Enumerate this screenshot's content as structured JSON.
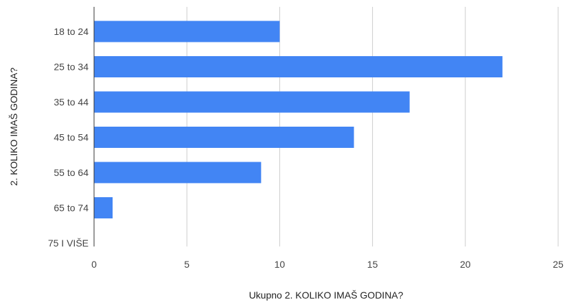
{
  "chart_data": {
    "type": "bar",
    "orientation": "horizontal",
    "categories": [
      "18 to 24",
      "25 to 34",
      "35 to 44",
      "45 to 54",
      "55 to 64",
      "65 to 74",
      "75 I VIŠE"
    ],
    "values": [
      10,
      22,
      17,
      14,
      9,
      1,
      0
    ],
    "xlabel": "Ukupno 2. KOLIKO IMAŠ GODINA?",
    "ylabel": "2. KOLIKO IMAŠ GODINA?",
    "xlim": [
      0,
      25
    ],
    "xticks": [
      "0",
      "5",
      "10",
      "15",
      "20",
      "25"
    ],
    "grid": "vertical",
    "bar_color": "#4285f4",
    "gridline_color": "#cccccc",
    "axis_color": "#333333"
  }
}
